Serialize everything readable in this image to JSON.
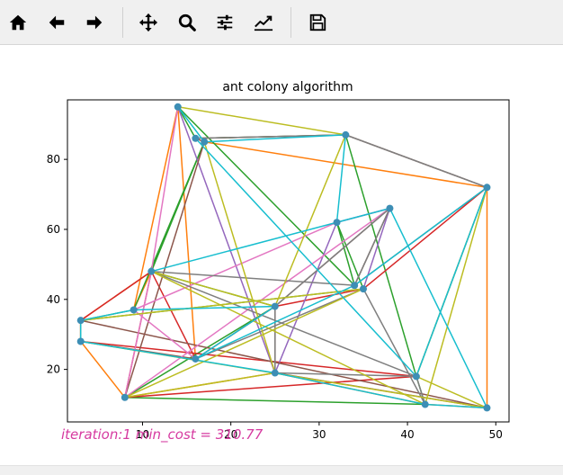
{
  "toolbar": {
    "buttons": [
      {
        "name": "home-button",
        "icon": "home-icon"
      },
      {
        "name": "back-button",
        "icon": "arrow-left-icon"
      },
      {
        "name": "forward-button",
        "icon": "arrow-right-icon"
      },
      {
        "name": "pan-button",
        "icon": "move-icon"
      },
      {
        "name": "zoom-button",
        "icon": "zoom-icon"
      },
      {
        "name": "configure-subplots-button",
        "icon": "sliders-icon"
      },
      {
        "name": "edit-axis-button",
        "icon": "chart-line-icon"
      },
      {
        "name": "save-button",
        "icon": "floppy-disk-icon"
      }
    ]
  },
  "chart_data": {
    "type": "line",
    "title": "ant colony algorithm",
    "xlabel": "",
    "ylabel": "",
    "xlim": [
      1.5,
      51.5
    ],
    "ylim": [
      5,
      97
    ],
    "xticks": [
      10,
      20,
      30,
      40,
      50
    ],
    "yticks": [
      20,
      40,
      60,
      80
    ],
    "grid": false,
    "point_color": "#3d8eb5",
    "cities": [
      [
        14,
        95
      ],
      [
        16,
        86
      ],
      [
        17,
        85
      ],
      [
        33,
        87
      ],
      [
        49,
        72
      ],
      [
        32,
        62
      ],
      [
        38,
        66
      ],
      [
        11,
        48
      ],
      [
        35,
        43
      ],
      [
        34,
        44
      ],
      [
        25,
        38
      ],
      [
        9,
        37
      ],
      [
        3,
        34
      ],
      [
        3,
        28
      ],
      [
        16,
        23
      ],
      [
        25,
        19
      ],
      [
        41,
        18
      ],
      [
        42,
        10
      ],
      [
        8,
        12
      ],
      [
        49,
        9
      ]
    ],
    "series": [
      {
        "color": "#ff7f0e",
        "route": [
          2,
          4,
          19,
          17,
          15,
          18,
          13,
          12,
          7,
          11,
          0,
          14
        ]
      },
      {
        "color": "#2ca02c",
        "route": [
          3,
          16,
          17,
          18,
          10,
          7,
          2,
          11,
          12,
          8,
          5,
          9,
          0,
          1,
          3
        ]
      },
      {
        "color": "#d62728",
        "route": [
          4,
          8,
          10,
          14,
          7,
          18,
          16,
          13,
          12,
          7
        ]
      },
      {
        "color": "#9467bd",
        "route": [
          0,
          15,
          5,
          6,
          8
        ]
      },
      {
        "color": "#8c564b",
        "route": [
          18,
          2,
          1,
          3,
          4,
          9,
          6,
          10,
          15,
          19,
          12,
          13,
          14
        ]
      },
      {
        "color": "#e377c2",
        "route": [
          0,
          7,
          18,
          6,
          5,
          11,
          14
        ]
      },
      {
        "color": "#7f7f7f",
        "route": [
          1,
          3,
          4,
          16,
          7,
          9,
          6,
          10,
          15,
          16,
          17,
          8,
          14
        ]
      },
      {
        "color": "#bcbd22",
        "route": [
          0,
          3,
          10,
          7,
          17,
          4,
          16,
          19,
          13,
          12,
          8,
          18,
          15,
          2
        ]
      },
      {
        "color": "#17becf",
        "route": [
          0,
          2,
          3,
          5,
          7,
          6,
          19,
          17,
          15,
          13,
          12,
          11,
          10,
          14,
          9,
          4,
          16,
          1
        ]
      }
    ]
  },
  "caption": {
    "text": "iteration:1 min_cost = 310.77",
    "color": "#d63aa0"
  }
}
